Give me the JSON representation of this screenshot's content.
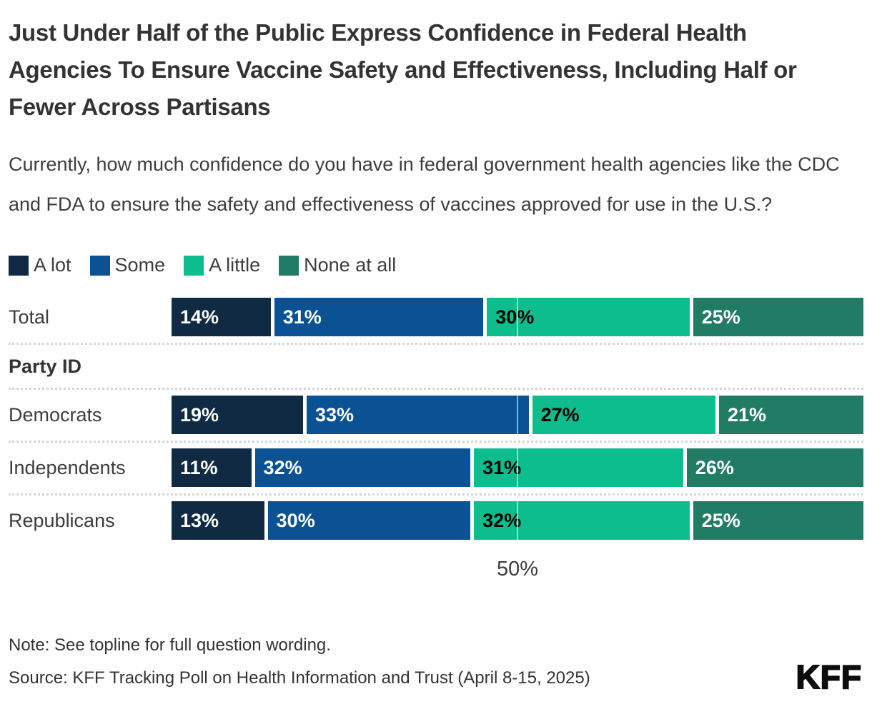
{
  "header": {
    "title": "Just Under Half of the Public Express Confidence in Federal Health Agencies To Ensure Vaccine Safety and Effectiveness, Including Half or Fewer Across Partisans",
    "subtitle": "Currently, how much confidence do you have in federal government health agencies like the CDC and FDA to ensure the safety and effectiveness of vaccines approved for use in the U.S.?"
  },
  "legend": {
    "items": [
      {
        "label": "A lot",
        "color": "#0f2a42"
      },
      {
        "label": "Some",
        "color": "#0a5294"
      },
      {
        "label": "A little",
        "color": "#0dbd8d"
      },
      {
        "label": "None at all",
        "color": "#217c66"
      }
    ]
  },
  "chart_data": {
    "type": "bar",
    "orientation": "horizontal",
    "stacked": true,
    "unit": "%",
    "title": "Just Under Half of the Public Express Confidence in Federal Health Agencies To Ensure Vaccine Safety and Effectiveness, Including Half or Fewer Across Partisans",
    "categories": [
      "Total",
      "Democrats",
      "Independents",
      "Republicans"
    ],
    "section_headers": [
      {
        "label": "Party ID",
        "before_index": 1
      }
    ],
    "series": [
      {
        "name": "A lot",
        "color": "#0f2a42",
        "label_color": "#ffffff",
        "values": [
          14,
          19,
          11,
          13
        ]
      },
      {
        "name": "Some",
        "color": "#0a5294",
        "label_color": "#ffffff",
        "values": [
          31,
          33,
          32,
          30
        ]
      },
      {
        "name": "A little",
        "color": "#0dbd8d",
        "label_color": "#000000",
        "values": [
          30,
          27,
          31,
          32
        ]
      },
      {
        "name": "None at all",
        "color": "#217c66",
        "label_color": "#ffffff",
        "values": [
          25,
          21,
          26,
          25
        ]
      }
    ],
    "xlim": [
      0,
      100
    ],
    "gridline_at": 50,
    "x_tick_labels": [
      "50%"
    ],
    "legend_position": "top",
    "data_labels": "inside-start"
  },
  "axis": {
    "tick_label": "50%"
  },
  "footer": {
    "note": "Note: See topline for full question wording.",
    "source": "Source: KFF Tracking Poll on Health Information and Trust (April 8-15, 2025)",
    "logo": "KFF"
  }
}
